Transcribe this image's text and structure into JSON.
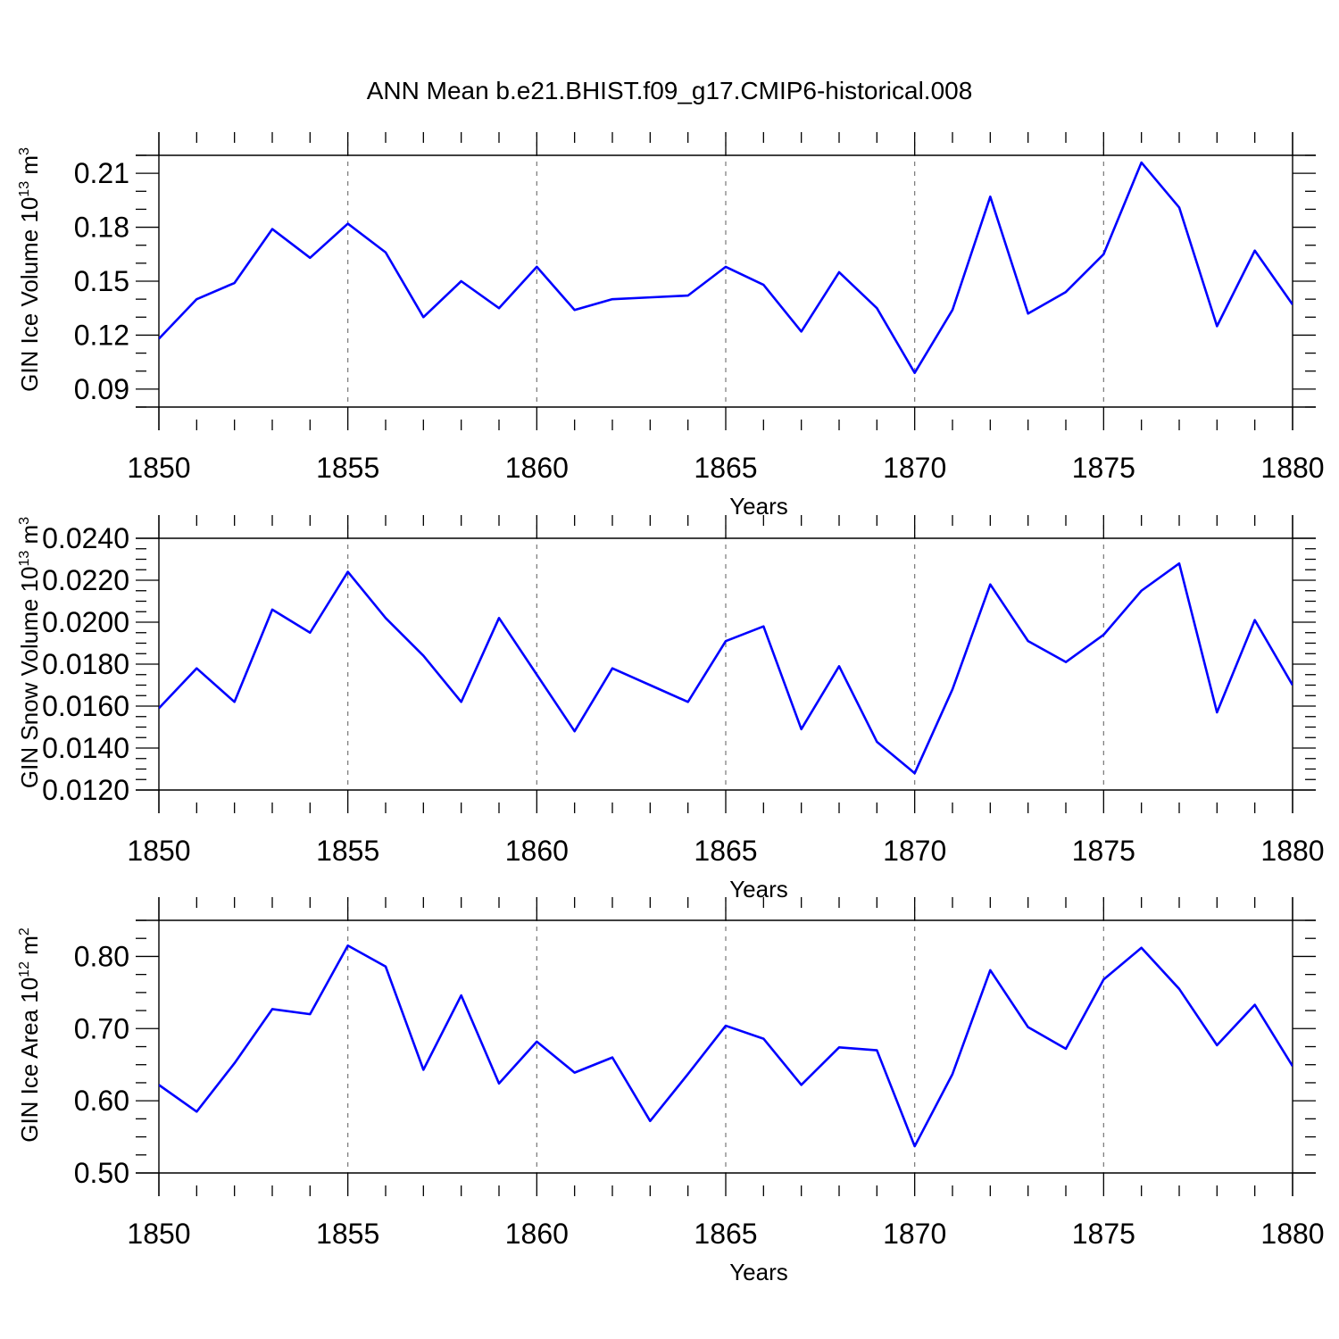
{
  "figure_title": "ANN Mean b.e21.BHIST.f09_g17.CMIP6-historical.008",
  "chart_data": [
    {
      "type": "line",
      "title": "ANN Mean b.e21.BHIST.f09_g17.CMIP6-historical.008",
      "xlabel": "Years",
      "ylabel_main": "GIN Ice Volume 10",
      "ylabel_exp": "13",
      "ylabel_unit": " m",
      "ylabel_unit_exp": "3",
      "xlim": [
        1850,
        1880
      ],
      "ylim": [
        0.08,
        0.22
      ],
      "xticks": [
        1850,
        1855,
        1860,
        1865,
        1870,
        1875,
        1880
      ],
      "xtick_labels": [
        "1850",
        "1855",
        "1860",
        "1865",
        "1870",
        "1875",
        "1880"
      ],
      "yticks": [
        0.09,
        0.12,
        0.15,
        0.18,
        0.21
      ],
      "ytick_labels": [
        "0.09",
        "0.12",
        "0.15",
        "0.18",
        "0.21"
      ],
      "grid": "vertical dashed at major x ticks",
      "series": [
        {
          "name": "GIN Ice Volume",
          "color": "#0000ff",
          "x": [
            1850,
            1851,
            1852,
            1853,
            1854,
            1855,
            1856,
            1857,
            1858,
            1859,
            1860,
            1861,
            1862,
            1863,
            1864,
            1865,
            1866,
            1867,
            1868,
            1869,
            1870,
            1871,
            1872,
            1873,
            1874,
            1875,
            1876,
            1877,
            1878,
            1879,
            1880
          ],
          "values": [
            0.118,
            0.14,
            0.149,
            0.179,
            0.163,
            0.182,
            0.166,
            0.13,
            0.15,
            0.135,
            0.158,
            0.134,
            0.14,
            0.141,
            0.142,
            0.158,
            0.148,
            0.122,
            0.155,
            0.135,
            0.099,
            0.134,
            0.197,
            0.132,
            0.144,
            0.165,
            0.216,
            0.191,
            0.125,
            0.167,
            0.137
          ]
        }
      ]
    },
    {
      "type": "line",
      "title": "",
      "xlabel": "Years",
      "ylabel_main": "GIN Snow Volume 10",
      "ylabel_exp": "13",
      "ylabel_unit": " m",
      "ylabel_unit_exp": "3",
      "xlim": [
        1850,
        1880
      ],
      "ylim": [
        0.012,
        0.024
      ],
      "xticks": [
        1850,
        1855,
        1860,
        1865,
        1870,
        1875,
        1880
      ],
      "xtick_labels": [
        "1850",
        "1855",
        "1860",
        "1865",
        "1870",
        "1875",
        "1880"
      ],
      "yticks": [
        0.012,
        0.014,
        0.016,
        0.018,
        0.02,
        0.022,
        0.024
      ],
      "ytick_labels": [
        "0.0120",
        "0.0140",
        "0.0160",
        "0.0180",
        "0.0200",
        "0.0220",
        "0.0240"
      ],
      "grid": "vertical dashed at major x ticks",
      "series": [
        {
          "name": "GIN Snow Volume",
          "color": "#0000ff",
          "x": [
            1850,
            1851,
            1852,
            1853,
            1854,
            1855,
            1856,
            1857,
            1858,
            1859,
            1860,
            1861,
            1862,
            1863,
            1864,
            1865,
            1866,
            1867,
            1868,
            1869,
            1870,
            1871,
            1872,
            1873,
            1874,
            1875,
            1876,
            1877,
            1878,
            1879,
            1880
          ],
          "values": [
            0.0159,
            0.0178,
            0.0162,
            0.0206,
            0.0195,
            0.0224,
            0.0202,
            0.0184,
            0.0162,
            0.0202,
            0.0175,
            0.0148,
            0.0178,
            0.017,
            0.0162,
            0.0191,
            0.0198,
            0.0149,
            0.0179,
            0.0143,
            0.0128,
            0.0168,
            0.0218,
            0.0191,
            0.0181,
            0.0194,
            0.0215,
            0.0228,
            0.0157,
            0.0201,
            0.017
          ]
        }
      ]
    },
    {
      "type": "line",
      "title": "",
      "xlabel": "Years",
      "ylabel_main": "GIN Ice Area 10",
      "ylabel_exp": "12",
      "ylabel_unit": " m",
      "ylabel_unit_exp": "2",
      "xlim": [
        1850,
        1880
      ],
      "ylim": [
        0.5,
        0.85
      ],
      "xticks": [
        1850,
        1855,
        1860,
        1865,
        1870,
        1875,
        1880
      ],
      "xtick_labels": [
        "1850",
        "1855",
        "1860",
        "1865",
        "1870",
        "1875",
        "1880"
      ],
      "yticks": [
        0.5,
        0.6,
        0.7,
        0.8
      ],
      "ytick_labels": [
        "0.50",
        "0.60",
        "0.70",
        "0.80"
      ],
      "grid": "vertical dashed at major x ticks",
      "series": [
        {
          "name": "GIN Ice Area",
          "color": "#0000ff",
          "x": [
            1850,
            1851,
            1852,
            1853,
            1854,
            1855,
            1856,
            1857,
            1858,
            1859,
            1860,
            1861,
            1862,
            1863,
            1864,
            1865,
            1866,
            1867,
            1868,
            1869,
            1870,
            1871,
            1872,
            1873,
            1874,
            1875,
            1876,
            1877,
            1878,
            1879,
            1880
          ],
          "values": [
            0.622,
            0.585,
            0.652,
            0.727,
            0.72,
            0.815,
            0.786,
            0.643,
            0.746,
            0.624,
            0.682,
            0.639,
            0.66,
            0.572,
            0.637,
            0.704,
            0.686,
            0.622,
            0.674,
            0.67,
            0.537,
            0.637,
            0.781,
            0.702,
            0.672,
            0.768,
            0.812,
            0.755,
            0.677,
            0.733,
            0.648
          ]
        }
      ]
    }
  ]
}
